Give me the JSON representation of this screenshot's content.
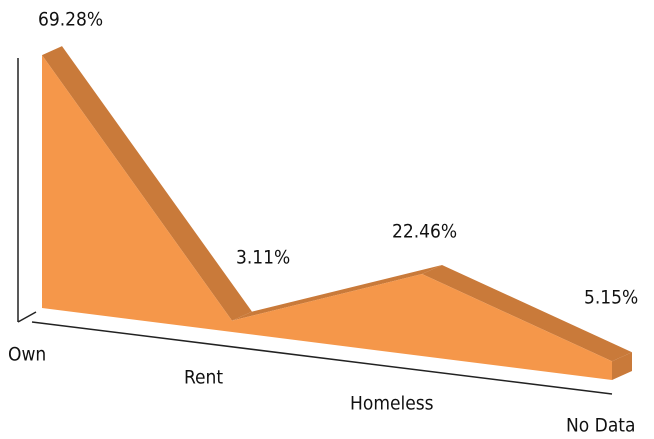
{
  "chart_data": {
    "type": "area3d",
    "categories": [
      "Own",
      "Rent",
      "Homeless",
      "No Data"
    ],
    "values": [
      69.28,
      3.11,
      22.46,
      5.15
    ],
    "value_labels": [
      "69.28%",
      "3.11%",
      "22.46%",
      "5.15%"
    ],
    "color": "#f5974a",
    "side_color": "#c97a3a"
  }
}
